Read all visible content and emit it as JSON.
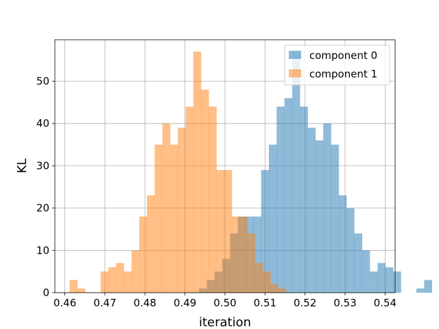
{
  "chart_data": {
    "type": "histogram",
    "title": "",
    "xlabel": "iteration",
    "ylabel": "KL",
    "xlim": [
      0.4575,
      0.5425
    ],
    "ylim": [
      0,
      59.8
    ],
    "xticks": [
      0.46,
      0.47,
      0.48,
      0.49,
      0.5,
      0.51,
      0.52,
      0.53,
      0.54
    ],
    "xtick_labels": [
      "0.46",
      "0.47",
      "0.48",
      "0.49",
      "0.50",
      "0.51",
      "0.52",
      "0.53",
      "0.54"
    ],
    "yticks": [
      0,
      10,
      20,
      30,
      40,
      50
    ],
    "ytick_labels": [
      "0",
      "10",
      "20",
      "30",
      "40",
      "50"
    ],
    "grid": true,
    "legend_position": "top-right",
    "series": [
      {
        "name": "component 0",
        "color": "#1f77b4",
        "opacity": 0.5,
        "bin_start": 0.4935,
        "bin_width": 0.00194,
        "counts": [
          1,
          3,
          5,
          8,
          14,
          18,
          18,
          18,
          29,
          35,
          44,
          46,
          57,
          44,
          39,
          36,
          40,
          35,
          23,
          20,
          14,
          10,
          5,
          7,
          6,
          5,
          0,
          0,
          1,
          3
        ]
      },
      {
        "name": "component 1",
        "color": "#ff7f0e",
        "opacity": 0.5,
        "bin_start": 0.4612,
        "bin_width": 0.00193,
        "counts": [
          3,
          1,
          0,
          0,
          5,
          6,
          7,
          5,
          10,
          18,
          23,
          35,
          40,
          35,
          39,
          44,
          57,
          48,
          44,
          29,
          29,
          18,
          18,
          14,
          7,
          5,
          2,
          1
        ]
      }
    ]
  }
}
